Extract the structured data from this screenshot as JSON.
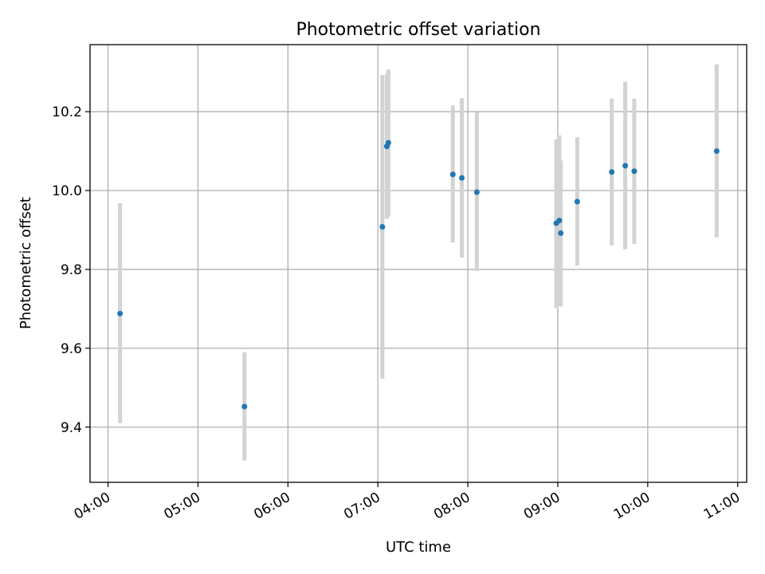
{
  "chart_data": {
    "type": "scatter",
    "title": "Photometric offset variation",
    "xlabel": "UTC time",
    "ylabel": "Photometric offset",
    "x_axis_type": "time",
    "x_tick_values": [
      "04:00",
      "05:00",
      "06:00",
      "07:00",
      "08:00",
      "09:00",
      "10:00",
      "11:00"
    ],
    "x_tick_labels": [
      "04:00",
      "05:00",
      "06:00",
      "07:00",
      "08:00",
      "09:00",
      "10:00",
      "11:00"
    ],
    "y_ticks": [
      9.4,
      9.6,
      9.8,
      10.0,
      10.2
    ],
    "y_tick_labels": [
      "9.4",
      "9.6",
      "9.8",
      "10.0",
      "10.2"
    ],
    "xlim": [
      "03:48",
      "11:06"
    ],
    "ylim": [
      9.26,
      10.37
    ],
    "grid": true,
    "marker_color": "#1f77b4",
    "errorbar_color": "#d3d3d3",
    "points": [
      {
        "t": "04:08",
        "y": 9.688,
        "ylow": 9.41,
        "yhigh": 9.968
      },
      {
        "t": "05:31",
        "y": 9.452,
        "ylow": 9.315,
        "yhigh": 9.59
      },
      {
        "t": "07:03",
        "y": 9.908,
        "ylow": 9.523,
        "yhigh": 10.293
      },
      {
        "t": "07:06",
        "y": 10.112,
        "ylow": 9.928,
        "yhigh": 10.296
      },
      {
        "t": "07:07",
        "y": 10.121,
        "ylow": 9.934,
        "yhigh": 10.307
      },
      {
        "t": "07:50",
        "y": 10.041,
        "ylow": 9.868,
        "yhigh": 10.216
      },
      {
        "t": "07:56",
        "y": 10.032,
        "ylow": 9.83,
        "yhigh": 10.234
      },
      {
        "t": "08:06",
        "y": 9.996,
        "ylow": 9.796,
        "yhigh": 10.199
      },
      {
        "t": "08:59",
        "y": 9.917,
        "ylow": 9.702,
        "yhigh": 10.13
      },
      {
        "t": "09:01",
        "y": 9.924,
        "ylow": 9.706,
        "yhigh": 10.14
      },
      {
        "t": "09:02",
        "y": 9.892,
        "ylow": 9.706,
        "yhigh": 10.076
      },
      {
        "t": "09:13",
        "y": 9.972,
        "ylow": 9.81,
        "yhigh": 10.135
      },
      {
        "t": "09:36",
        "y": 10.047,
        "ylow": 9.861,
        "yhigh": 10.233
      },
      {
        "t": "09:45",
        "y": 10.063,
        "ylow": 9.851,
        "yhigh": 10.276
      },
      {
        "t": "09:51",
        "y": 10.049,
        "ylow": 9.864,
        "yhigh": 10.233
      },
      {
        "t": "10:46",
        "y": 10.1,
        "ylow": 9.881,
        "yhigh": 10.32
      }
    ]
  }
}
